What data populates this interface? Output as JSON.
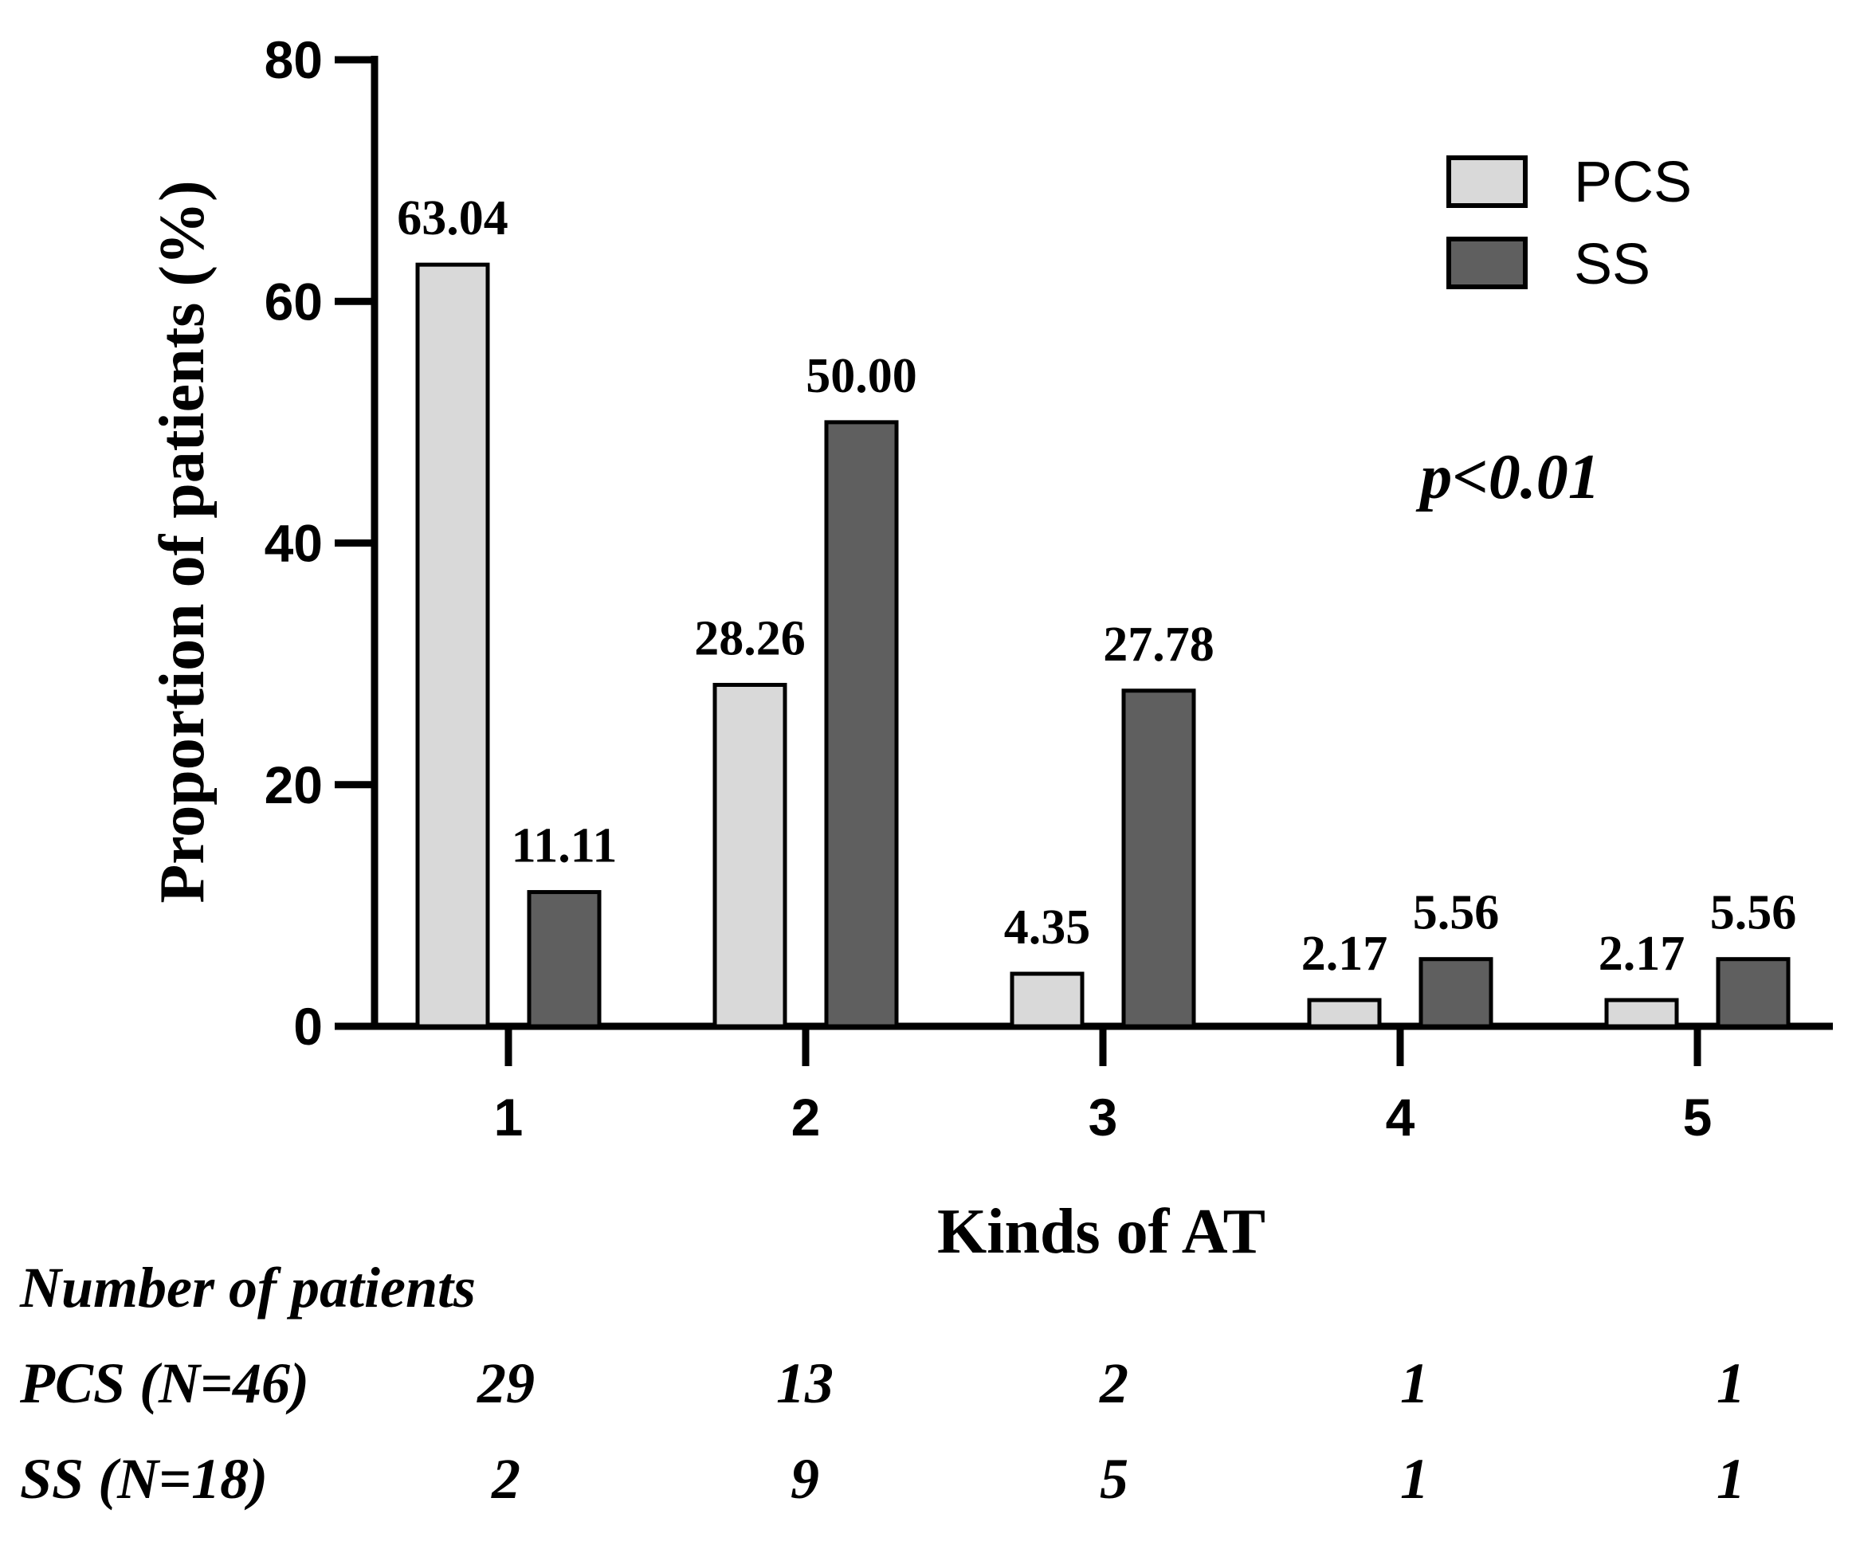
{
  "chart_data": {
    "type": "bar",
    "categories": [
      "1",
      "2",
      "3",
      "4",
      "5"
    ],
    "series": [
      {
        "name": "PCS",
        "values": [
          63.04,
          28.26,
          4.35,
          2.17,
          2.17
        ],
        "labels": [
          "63.04",
          "28.26",
          "4.35",
          "2.17",
          "2.17"
        ],
        "color": "#d9d9d9"
      },
      {
        "name": "SS",
        "values": [
          11.11,
          50.0,
          27.78,
          5.56,
          5.56
        ],
        "labels": [
          "11.11",
          "50.00",
          "27.78",
          "5.56",
          "5.56"
        ],
        "color": "#5f5f5f"
      }
    ],
    "xlabel": "Kinds of AT",
    "ylabel": "Proportion of patients (%)",
    "ylim": [
      0,
      80
    ],
    "yticks": [
      "0",
      "20",
      "40",
      "60",
      "80"
    ],
    "legend_position": "top-right",
    "annotation": "p<0.01",
    "grid": false
  },
  "table": {
    "title": "Number of patients",
    "rows": [
      {
        "label": "PCS (N=46)",
        "values": [
          "29",
          "13",
          "2",
          "1",
          "1"
        ]
      },
      {
        "label": "SS (N=18)",
        "values": [
          "2",
          "9",
          "5",
          "1",
          "1"
        ]
      }
    ]
  }
}
